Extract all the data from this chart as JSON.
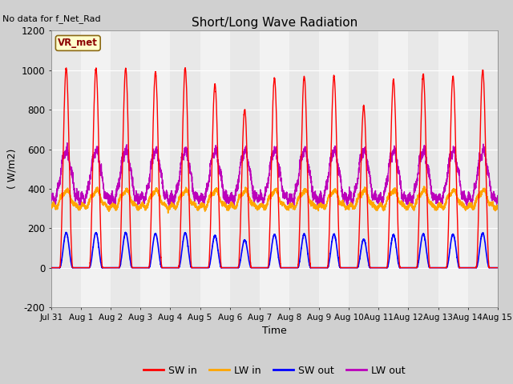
{
  "title": "Short/Long Wave Radiation",
  "xlabel": "Time",
  "ylabel": "( W/m2)",
  "ylim": [
    -200,
    1200
  ],
  "yticks": [
    -200,
    0,
    200,
    400,
    600,
    800,
    1000,
    1200
  ],
  "xtick_labels": [
    "Jul 31",
    "Aug 1",
    "Aug 2",
    "Aug 3",
    "Aug 4",
    "Aug 5",
    "Aug 6",
    "Aug 7",
    "Aug 8",
    "Aug 9",
    "Aug 10",
    "Aug 11",
    "Aug 12",
    "Aug 13",
    "Aug 14",
    "Aug 15"
  ],
  "note_text": "No data for f_Net_Rad",
  "legend_label": "VR_met",
  "colors": {
    "SW_in": "#ff0000",
    "LW_in": "#ffa500",
    "SW_out": "#0000ff",
    "LW_out": "#bb00bb"
  },
  "legend_entries": [
    "SW in",
    "LW in",
    "SW out",
    "LW out"
  ],
  "num_days": 15,
  "points_per_day": 288,
  "sw_in_peaks": [
    1010,
    1010,
    1010,
    990,
    1010,
    930,
    800,
    960,
    970,
    970,
    820,
    950,
    980,
    970,
    1000
  ],
  "band_colors": [
    "#e8e8e8",
    "#f5f5f5"
  ]
}
